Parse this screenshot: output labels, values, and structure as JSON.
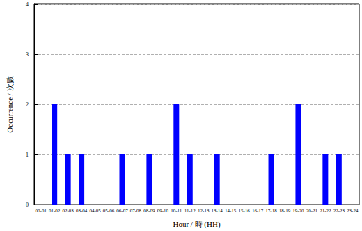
{
  "chart_data": {
    "type": "bar",
    "x_label": "Hour / 時 (HH)",
    "y_label": "Occurrence / 次數",
    "categories": [
      "00-01",
      "01-02",
      "02-03",
      "03-04",
      "04-05",
      "05-06",
      "06-07",
      "07-08",
      "08-09",
      "09-10",
      "10-11",
      "11-12",
      "12-13",
      "13-14",
      "14-15",
      "15-16",
      "16-17",
      "17-18",
      "18-19",
      "19-20",
      "20-21",
      "21-22",
      "22-23",
      "23-24"
    ],
    "values": [
      0,
      2,
      1,
      1,
      0,
      0,
      1,
      0,
      1,
      0,
      2,
      1,
      0,
      1,
      0,
      0,
      0,
      1,
      0,
      2,
      0,
      1,
      1,
      0
    ],
    "color": "#0000ff",
    "ylim": [
      0,
      4
    ],
    "yticks": [
      0,
      1,
      2,
      3,
      4
    ],
    "grid": true
  }
}
